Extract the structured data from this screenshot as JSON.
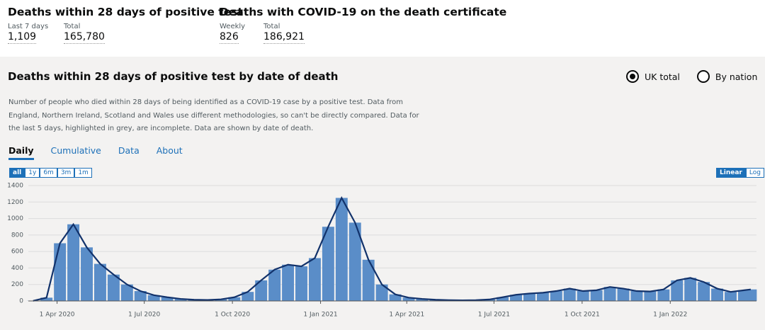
{
  "header": {
    "stats": [
      {
        "title": "Deaths within 28 days of positive test",
        "items": [
          {
            "label": "Last 7 days",
            "value": "1,109"
          },
          {
            "label": "Total",
            "value": "165,780"
          }
        ]
      },
      {
        "title": "Deaths with COVID-19 on the death certificate",
        "items": [
          {
            "label": "Weekly",
            "value": "826"
          },
          {
            "label": "Total",
            "value": "186,921"
          }
        ]
      }
    ]
  },
  "panel": {
    "title": "Deaths within 28 days of positive test by date of death",
    "options": [
      "UK total",
      "By nation"
    ],
    "selected_option": 0,
    "description": [
      "Number of people who died within 28 days of being identified as a COVID-19 case by a positive test. Data from",
      "England, Northern Ireland, Scotland and Wales use different methodologies, so can't be directly compared. Data for",
      "the last 5 days, highlighted in grey, are incomplete. Data are shown by date of death."
    ],
    "tabs": [
      "Daily",
      "Cumulative",
      "Data",
      "About"
    ],
    "active_tab": 0,
    "range_buttons": [
      "all",
      "1y",
      "6m",
      "3m",
      "1m"
    ],
    "active_range": 0,
    "scale_buttons": [
      "Linear",
      "Log"
    ],
    "active_scale": 0
  },
  "chart_data": {
    "type": "bar",
    "x": [
      "2020-03-07",
      "2020-03-21",
      "2020-04-04",
      "2020-04-18",
      "2020-05-02",
      "2020-05-16",
      "2020-05-30",
      "2020-06-13",
      "2020-06-27",
      "2020-07-11",
      "2020-07-25",
      "2020-08-08",
      "2020-08-22",
      "2020-09-05",
      "2020-09-19",
      "2020-10-03",
      "2020-10-17",
      "2020-10-31",
      "2020-11-14",
      "2020-11-28",
      "2020-12-12",
      "2020-12-26",
      "2021-01-09",
      "2021-01-23",
      "2021-02-06",
      "2021-02-20",
      "2021-03-06",
      "2021-03-20",
      "2021-04-03",
      "2021-04-17",
      "2021-05-01",
      "2021-05-15",
      "2021-05-29",
      "2021-06-12",
      "2021-06-26",
      "2021-07-10",
      "2021-07-24",
      "2021-08-07",
      "2021-08-21",
      "2021-09-04",
      "2021-09-18",
      "2021-10-02",
      "2021-10-16",
      "2021-10-30",
      "2021-11-13",
      "2021-11-27",
      "2021-12-11",
      "2021-12-25",
      "2022-01-08",
      "2022-01-22",
      "2022-02-05",
      "2022-02-19",
      "2022-03-05",
      "2022-03-19",
      "2022-03-26"
    ],
    "values": [
      2,
      40,
      700,
      930,
      650,
      450,
      320,
      200,
      120,
      70,
      45,
      25,
      15,
      12,
      20,
      45,
      110,
      250,
      380,
      440,
      420,
      520,
      900,
      1250,
      950,
      500,
      200,
      80,
      40,
      25,
      15,
      10,
      8,
      10,
      18,
      45,
      75,
      90,
      100,
      120,
      150,
      120,
      130,
      170,
      150,
      120,
      115,
      140,
      250,
      280,
      230,
      150,
      110,
      130,
      140
    ],
    "color": "#5a8dc8",
    "line_color": "#12326b",
    "xlim": [
      "2020-03-02",
      "2022-04-01"
    ],
    "xticks": [
      {
        "value": "2020-04-01",
        "label": "1 Apr 2020"
      },
      {
        "value": "2020-07-01",
        "label": "1 Jul 2020"
      },
      {
        "value": "2020-10-01",
        "label": "1 Oct 2020"
      },
      {
        "value": "2021-01-01",
        "label": "1 Jan 2021"
      },
      {
        "value": "2021-04-01",
        "label": "1 Apr 2021"
      },
      {
        "value": "2021-07-01",
        "label": "1 Jul 2021"
      },
      {
        "value": "2021-10-01",
        "label": "1 Oct 2021"
      },
      {
        "value": "2022-01-01",
        "label": "1 Jan 2022"
      }
    ],
    "ylim": [
      0,
      1400
    ],
    "yticks": [
      0,
      200,
      400,
      600,
      800,
      1000,
      1200,
      1400
    ],
    "grid": true
  }
}
